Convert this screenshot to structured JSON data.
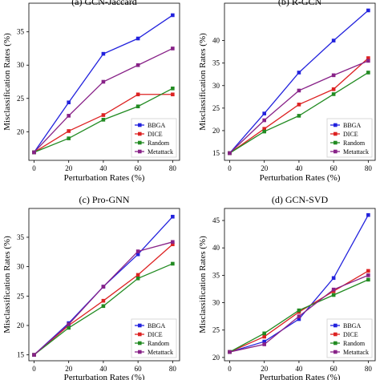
{
  "chart_data": [
    {
      "type": "line",
      "title": "(a) GCN-Jaccard",
      "xlabel": "Perturbation Rates (%)",
      "ylabel": "Misclassification Rates (%)",
      "x": [
        0,
        20,
        40,
        60,
        80
      ],
      "xticks": [
        0,
        20,
        40,
        60,
        80
      ],
      "xlim": [
        -3,
        84
      ],
      "yticks": [
        20,
        25,
        30,
        35
      ],
      "ylim": [
        15.7,
        39.3
      ],
      "legend": "bottom-right",
      "series": [
        {
          "name": "BBGA",
          "color": "#2222dd",
          "marker": "square",
          "values": [
            16.9,
            24.4,
            31.7,
            34.0,
            37.5
          ]
        },
        {
          "name": "DICE",
          "color": "#dd2222",
          "marker": "square",
          "values": [
            16.9,
            20.1,
            22.5,
            25.6,
            25.6
          ]
        },
        {
          "name": "Random",
          "color": "#228b22",
          "marker": "square",
          "values": [
            16.9,
            19.0,
            21.8,
            23.8,
            26.5
          ]
        },
        {
          "name": "Metattack",
          "color": "#882288",
          "marker": "square",
          "values": [
            16.9,
            22.4,
            27.5,
            30.0,
            32.5
          ]
        }
      ]
    },
    {
      "type": "line",
      "title": "(b) R-GCN",
      "xlabel": "Perturbation Rates (%)",
      "ylabel": "Misclassification Rates (%)",
      "x": [
        0,
        20,
        40,
        60,
        80
      ],
      "xticks": [
        0,
        20,
        40,
        60,
        80
      ],
      "xlim": [
        -3,
        84
      ],
      "yticks": [
        15,
        20,
        25,
        30,
        35,
        40
      ],
      "ylim": [
        13.4,
        48.3
      ],
      "legend": "bottom-right",
      "series": [
        {
          "name": "BBGA",
          "color": "#2222dd",
          "marker": "square",
          "values": [
            15.0,
            23.8,
            32.9,
            40.0,
            46.7
          ]
        },
        {
          "name": "DICE",
          "color": "#dd2222",
          "marker": "square",
          "values": [
            15.0,
            20.4,
            25.8,
            29.2,
            36.1
          ]
        },
        {
          "name": "Random",
          "color": "#228b22",
          "marker": "square",
          "values": [
            15.0,
            19.8,
            23.3,
            28.1,
            32.9
          ]
        },
        {
          "name": "Metattack",
          "color": "#882288",
          "marker": "square",
          "values": [
            15.0,
            22.3,
            28.9,
            32.3,
            35.5
          ]
        }
      ]
    },
    {
      "type": "line",
      "title": "(c) Pro-GNN",
      "xlabel": "Perturbation Rates (%)",
      "ylabel": "Misclassification Rates (%)",
      "x": [
        0,
        20,
        40,
        60,
        80
      ],
      "xticks": [
        0,
        20,
        40,
        60,
        80
      ],
      "xlim": [
        -3,
        84
      ],
      "yticks": [
        15,
        20,
        25,
        30,
        35
      ],
      "ylim": [
        14.0,
        39.9
      ],
      "legend": "bottom-right",
      "series": [
        {
          "name": "BBGA",
          "color": "#2222dd",
          "marker": "square",
          "values": [
            15.0,
            20.4,
            26.6,
            32.1,
            38.5
          ]
        },
        {
          "name": "DICE",
          "color": "#dd2222",
          "marker": "square",
          "values": [
            15.0,
            20.0,
            24.2,
            28.6,
            33.8
          ]
        },
        {
          "name": "Random",
          "color": "#228b22",
          "marker": "square",
          "values": [
            15.0,
            19.6,
            23.3,
            28.0,
            30.5
          ]
        },
        {
          "name": "Metattack",
          "color": "#882288",
          "marker": "square",
          "values": [
            15.0,
            20.2,
            26.6,
            32.6,
            34.2
          ]
        }
      ]
    },
    {
      "type": "line",
      "title": "(d) GCN-SVD",
      "xlabel": "Perturbation Rates (%)",
      "ylabel": "Misclassification Rates (%)",
      "x": [
        0,
        20,
        40,
        60,
        80
      ],
      "xticks": [
        0,
        20,
        40,
        60,
        80
      ],
      "xlim": [
        -3,
        84
      ],
      "yticks": [
        20,
        25,
        30,
        35,
        40,
        45
      ],
      "ylim": [
        19.4,
        47.2
      ],
      "legend": "bottom-right",
      "series": [
        {
          "name": "BBGA",
          "color": "#2222dd",
          "marker": "square",
          "values": [
            21.0,
            22.9,
            27.0,
            34.5,
            46.0
          ]
        },
        {
          "name": "DICE",
          "color": "#dd2222",
          "marker": "square",
          "values": [
            21.0,
            23.8,
            28.3,
            32.1,
            35.8
          ]
        },
        {
          "name": "Random",
          "color": "#228b22",
          "marker": "square",
          "values": [
            21.0,
            24.4,
            28.6,
            31.4,
            34.2
          ]
        },
        {
          "name": "Metattack",
          "color": "#882288",
          "marker": "square",
          "values": [
            21.0,
            22.4,
            27.5,
            32.4,
            35.0
          ]
        }
      ]
    }
  ]
}
